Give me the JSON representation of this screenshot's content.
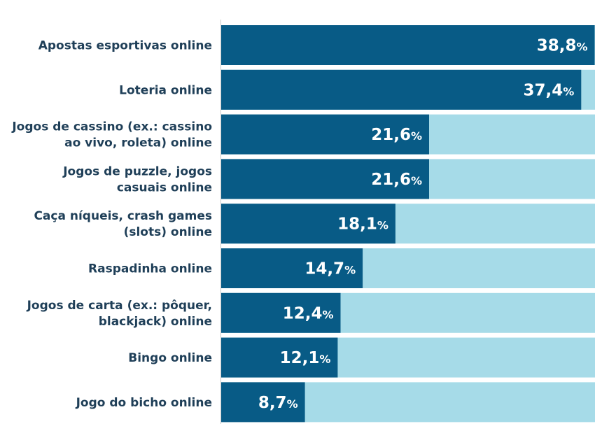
{
  "chart_data": {
    "type": "bar",
    "orientation": "horizontal",
    "stacked_background": true,
    "categories": [
      [
        "Apostas esportivas online"
      ],
      [
        "Loteria online"
      ],
      [
        "Jogos de cassino (ex.: cassino",
        "ao vivo, roleta) online"
      ],
      [
        "Jogos de puzzle, jogos",
        "casuais online"
      ],
      [
        "Caça níqueis, crash games",
        "(slots) online"
      ],
      [
        "Raspadinha online"
      ],
      [
        "Jogos de carta (ex.: pôquer,",
        "blackjack) online"
      ],
      [
        "Bingo online"
      ],
      [
        "Jogo do bicho online"
      ]
    ],
    "values": [
      38.8,
      37.4,
      21.6,
      21.6,
      18.1,
      14.7,
      12.4,
      12.1,
      8.7
    ],
    "value_labels": [
      "38,8",
      "37,4",
      "21,6",
      "21,6",
      "18,1",
      "14,7",
      "12,4",
      "12,1",
      "8,7"
    ],
    "unit": "%",
    "xlim": [
      0,
      100
    ],
    "title": "",
    "xlabel": "",
    "ylabel": ""
  },
  "colors": {
    "bar": "#085b86",
    "background_bar": "#a6dbe8",
    "label_text": "#1f3f58",
    "value_inside": "#ffffff",
    "value_outside": "#1f3f58",
    "axis_line": "#c8c8c8"
  }
}
